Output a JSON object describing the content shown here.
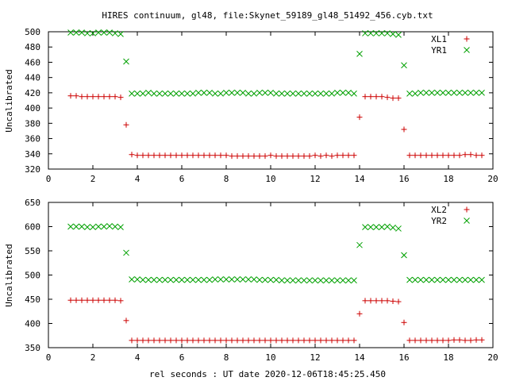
{
  "title": "HIRES continuum, gl48, file:Skynet_59189_gl48_51492_456.cyb.txt",
  "xlabel": "rel seconds : UT date 2020-12-06T18:45:25.450",
  "colors": {
    "xl": "#cc0000",
    "yr": "#00a000"
  },
  "chart_data": [
    {
      "type": "scatter",
      "ylabel": "Uncalibrated",
      "xlim": [
        0,
        20
      ],
      "ylim": [
        320,
        500
      ],
      "xticks": [
        0,
        2,
        4,
        6,
        8,
        10,
        12,
        14,
        16,
        18,
        20
      ],
      "yticks": [
        320,
        340,
        360,
        380,
        400,
        420,
        440,
        460,
        480,
        500
      ],
      "legend_position": "top-right",
      "series": [
        {
          "name": "XL1",
          "marker": "plus",
          "x": [
            1.0,
            1.25,
            1.5,
            1.75,
            2.0,
            2.25,
            2.5,
            2.75,
            3.0,
            3.25,
            3.5,
            3.75,
            4.0,
            4.25,
            4.5,
            4.75,
            5.0,
            5.25,
            5.5,
            5.75,
            6.0,
            6.25,
            6.5,
            6.75,
            7.0,
            7.25,
            7.5,
            7.75,
            8.0,
            8.25,
            8.5,
            8.75,
            9.0,
            9.25,
            9.5,
            9.75,
            10.0,
            10.25,
            10.5,
            10.75,
            11.0,
            11.25,
            11.5,
            11.75,
            12.0,
            12.25,
            12.5,
            12.75,
            13.0,
            13.25,
            13.5,
            13.75,
            14.0,
            14.25,
            14.5,
            14.75,
            15.0,
            15.25,
            15.5,
            15.75,
            16.0,
            16.25,
            16.5,
            16.75,
            17.0,
            17.25,
            17.5,
            17.75,
            18.0,
            18.25,
            18.5,
            18.75,
            19.0,
            19.25,
            19.5
          ],
          "y": [
            416,
            416,
            415,
            415,
            415,
            415,
            415,
            415,
            415,
            414,
            378,
            339,
            338,
            338,
            338,
            338,
            338,
            338,
            338,
            338,
            338,
            338,
            338,
            338,
            338,
            338,
            338,
            338,
            338,
            337,
            337,
            337,
            337,
            337,
            337,
            337,
            338,
            337,
            337,
            337,
            337,
            337,
            337,
            337,
            338,
            337,
            338,
            337,
            338,
            338,
            338,
            338,
            388,
            415,
            415,
            415,
            415,
            414,
            413,
            413,
            372,
            338,
            338,
            338,
            338,
            338,
            338,
            338,
            338,
            338,
            338,
            339,
            339,
            338,
            338
          ]
        },
        {
          "name": "YR1",
          "marker": "cross",
          "x": [
            1.0,
            1.25,
            1.5,
            1.75,
            2.0,
            2.25,
            2.5,
            2.75,
            3.0,
            3.25,
            3.5,
            3.75,
            4.0,
            4.25,
            4.5,
            4.75,
            5.0,
            5.25,
            5.5,
            5.75,
            6.0,
            6.25,
            6.5,
            6.75,
            7.0,
            7.25,
            7.5,
            7.75,
            8.0,
            8.25,
            8.5,
            8.75,
            9.0,
            9.25,
            9.5,
            9.75,
            10.0,
            10.25,
            10.5,
            10.75,
            11.0,
            11.25,
            11.5,
            11.75,
            12.0,
            12.25,
            12.5,
            12.75,
            13.0,
            13.25,
            13.5,
            13.75,
            14.0,
            14.25,
            14.5,
            14.75,
            15.0,
            15.25,
            15.5,
            15.75,
            16.0,
            16.25,
            16.5,
            16.75,
            17.0,
            17.25,
            17.5,
            17.75,
            18.0,
            18.25,
            18.5,
            18.75,
            19.0,
            19.25,
            19.5
          ],
          "y": [
            499,
            499,
            499,
            498,
            498,
            499,
            499,
            499,
            498,
            497,
            461,
            419,
            419,
            419,
            420,
            419,
            419,
            419,
            419,
            419,
            419,
            419,
            419,
            420,
            420,
            420,
            419,
            419,
            420,
            420,
            420,
            420,
            419,
            419,
            420,
            420,
            420,
            419,
            419,
            419,
            419,
            419,
            419,
            419,
            419,
            419,
            419,
            419,
            420,
            420,
            420,
            419,
            471,
            498,
            498,
            498,
            498,
            498,
            497,
            496,
            456,
            419,
            419,
            420,
            420,
            420,
            420,
            420,
            420,
            420,
            420,
            420,
            420,
            420,
            420
          ]
        }
      ]
    },
    {
      "type": "scatter",
      "ylabel": "Uncalibrated",
      "xlim": [
        0,
        20
      ],
      "ylim": [
        350,
        650
      ],
      "xticks": [
        0,
        2,
        4,
        6,
        8,
        10,
        12,
        14,
        16,
        18,
        20
      ],
      "yticks": [
        350,
        400,
        450,
        500,
        550,
        600,
        650
      ],
      "legend_position": "top-right",
      "series": [
        {
          "name": "XL2",
          "marker": "plus",
          "x": [
            1.0,
            1.25,
            1.5,
            1.75,
            2.0,
            2.25,
            2.5,
            2.75,
            3.0,
            3.25,
            3.5,
            3.75,
            4.0,
            4.25,
            4.5,
            4.75,
            5.0,
            5.25,
            5.5,
            5.75,
            6.0,
            6.25,
            6.5,
            6.75,
            7.0,
            7.25,
            7.5,
            7.75,
            8.0,
            8.25,
            8.5,
            8.75,
            9.0,
            9.25,
            9.5,
            9.75,
            10.0,
            10.25,
            10.5,
            10.75,
            11.0,
            11.25,
            11.5,
            11.75,
            12.0,
            12.25,
            12.5,
            12.75,
            13.0,
            13.25,
            13.5,
            13.75,
            14.0,
            14.25,
            14.5,
            14.75,
            15.0,
            15.25,
            15.5,
            15.75,
            16.0,
            16.25,
            16.5,
            16.75,
            17.0,
            17.25,
            17.5,
            17.75,
            18.0,
            18.25,
            18.5,
            18.75,
            19.0,
            19.25,
            19.5
          ],
          "y": [
            448,
            448,
            448,
            448,
            448,
            448,
            448,
            448,
            448,
            447,
            406,
            365,
            365,
            365,
            365,
            365,
            365,
            365,
            365,
            365,
            365,
            365,
            365,
            365,
            365,
            365,
            365,
            365,
            365,
            365,
            365,
            365,
            365,
            365,
            365,
            365,
            365,
            365,
            365,
            365,
            365,
            365,
            365,
            365,
            365,
            365,
            365,
            365,
            365,
            365,
            365,
            365,
            420,
            447,
            447,
            447,
            447,
            447,
            446,
            445,
            402,
            365,
            365,
            365,
            365,
            365,
            365,
            365,
            365,
            366,
            366,
            365,
            365,
            366,
            366
          ]
        },
        {
          "name": "YR2",
          "marker": "cross",
          "x": [
            1.0,
            1.25,
            1.5,
            1.75,
            2.0,
            2.25,
            2.5,
            2.75,
            3.0,
            3.25,
            3.5,
            3.75,
            4.0,
            4.25,
            4.5,
            4.75,
            5.0,
            5.25,
            5.5,
            5.75,
            6.0,
            6.25,
            6.5,
            6.75,
            7.0,
            7.25,
            7.5,
            7.75,
            8.0,
            8.25,
            8.5,
            8.75,
            9.0,
            9.25,
            9.5,
            9.75,
            10.0,
            10.25,
            10.5,
            10.75,
            11.0,
            11.25,
            11.5,
            11.75,
            12.0,
            12.25,
            12.5,
            12.75,
            13.0,
            13.25,
            13.5,
            13.75,
            14.0,
            14.25,
            14.5,
            14.75,
            15.0,
            15.25,
            15.5,
            15.75,
            16.0,
            16.25,
            16.5,
            16.75,
            17.0,
            17.25,
            17.5,
            17.75,
            18.0,
            18.25,
            18.5,
            18.75,
            19.0,
            19.25,
            19.5
          ],
          "y": [
            600,
            600,
            600,
            599,
            599,
            600,
            600,
            601,
            600,
            599,
            546,
            491,
            491,
            490,
            490,
            490,
            490,
            490,
            490,
            490,
            490,
            490,
            490,
            490,
            490,
            490,
            491,
            491,
            491,
            491,
            491,
            491,
            491,
            491,
            490,
            490,
            490,
            490,
            489,
            489,
            489,
            489,
            489,
            489,
            489,
            489,
            489,
            489,
            489,
            489,
            489,
            489,
            562,
            599,
            599,
            599,
            599,
            600,
            598,
            596,
            541,
            490,
            490,
            490,
            490,
            490,
            490,
            490,
            490,
            490,
            490,
            490,
            490,
            490,
            490
          ]
        }
      ]
    }
  ]
}
